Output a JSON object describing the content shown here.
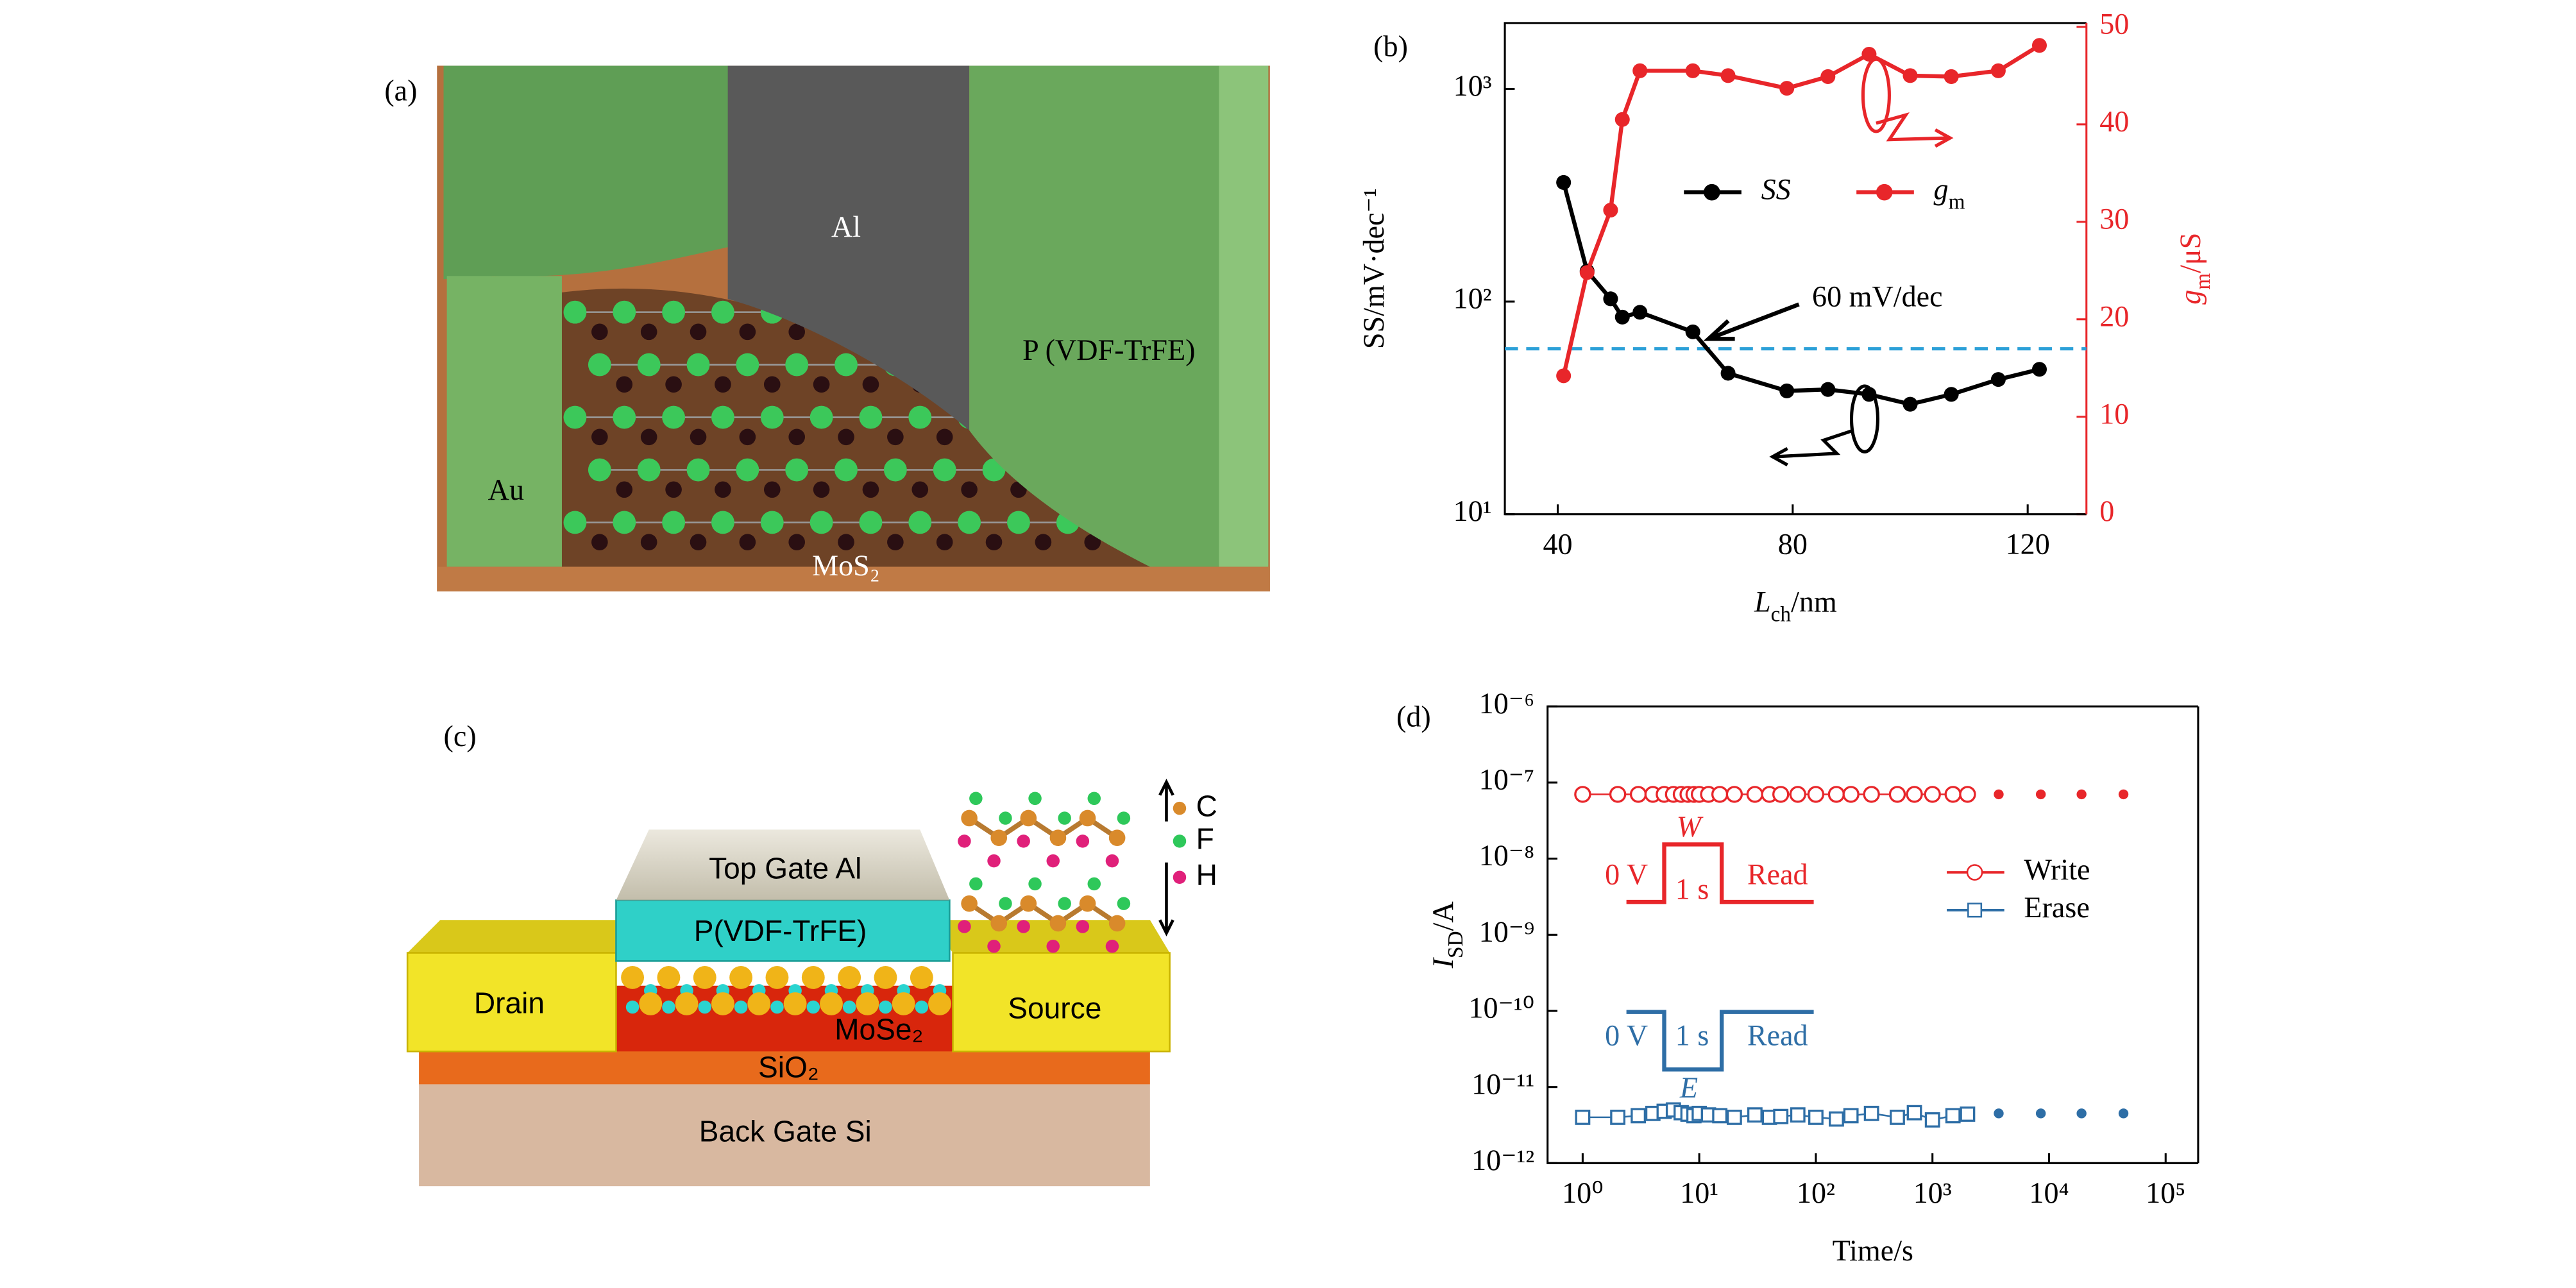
{
  "panels": {
    "a": {
      "label": "(a)",
      "texts": {
        "al": "Al",
        "pvdf": "P (VDF-TrFE)",
        "au": "Au",
        "mos2": "MoS₂"
      }
    },
    "c": {
      "label": "(c)",
      "texts": {
        "top_gate": "Top Gate Al",
        "pvdf": "P(VDF-TrFE)",
        "drain": "Drain",
        "source": "Source",
        "mose2": "MoSe₂",
        "sio2": "SiO₂",
        "back_gate": "Back Gate Si",
        "c": "C",
        "f": "F",
        "h": "H"
      }
    }
  },
  "chart_data": [
    {
      "type": "line",
      "panel_label": "(b)",
      "x": [
        41,
        45,
        49,
        51,
        54,
        63,
        69,
        79,
        86,
        93,
        100,
        107,
        115,
        122
      ],
      "xlim": [
        31,
        130
      ],
      "xticks": [
        40,
        80,
        120
      ],
      "ylog": true,
      "ylim": [
        10,
        2040
      ],
      "yticks": [
        {
          "value": 10,
          "label": "10¹"
        },
        {
          "value": 100,
          "label": "10²"
        },
        {
          "value": 1000,
          "label": "10³"
        }
      ],
      "y2lim": [
        0,
        50.4
      ],
      "y2ticks": [
        0,
        10,
        20,
        30,
        40,
        50
      ],
      "xlabel": [
        "L",
        "ch",
        "/nm"
      ],
      "ylabel": "SS/mV·dec⁻¹",
      "y2label": [
        "g",
        "m",
        "/μS"
      ],
      "legend": "center",
      "series": [
        {
          "name": "SS",
          "color": "#000000",
          "values": [
            363,
            139,
            103,
            84.5,
            89,
            72,
            46,
            38,
            38.6,
            36.6,
            32.9,
            36.6,
            43,
            48
          ]
        },
        {
          "name": "g",
          "name_subscript": "m",
          "color": "#e8262a",
          "axis": "y2",
          "values": [
            14.2,
            24.8,
            31.2,
            40.5,
            45.5,
            45.5,
            45.0,
            43.7,
            44.9,
            47.2,
            45.0,
            44.9,
            45.5,
            48.1
          ]
        }
      ],
      "reference_line": {
        "value": 60,
        "color": "#2ca0d8",
        "label": "60 mV/dec"
      }
    },
    {
      "type": "scatter",
      "panel_label": "(d)",
      "xlog": true,
      "xlim": [
        0.5,
        190000
      ],
      "xticks": [
        {
          "value": 1,
          "label": "10⁰"
        },
        {
          "value": 10,
          "label": "10¹"
        },
        {
          "value": 100,
          "label": "10²"
        },
        {
          "value": 1000,
          "label": "10³"
        },
        {
          "value": 10000,
          "label": "10⁴"
        },
        {
          "value": 100000,
          "label": "10⁵"
        }
      ],
      "ylog": true,
      "ylim": [
        1e-12,
        1e-06
      ],
      "yticks": [
        {
          "value": 1e-12,
          "label": "10⁻¹²"
        },
        {
          "value": 1e-11,
          "label": "10⁻¹¹"
        },
        {
          "value": 1e-10,
          "label": "10⁻¹⁰"
        },
        {
          "value": 1e-09,
          "label": "10⁻⁹"
        },
        {
          "value": 1e-08,
          "label": "10⁻⁸"
        },
        {
          "value": 1e-07,
          "label": "10⁻⁷"
        },
        {
          "value": 1e-06,
          "label": "10⁻⁶"
        }
      ],
      "xlabel": "Time/s",
      "ylabel": [
        "I",
        "SD",
        "/A"
      ],
      "legend": "right",
      "series": [
        {
          "name": "Write",
          "color": "#e8262a",
          "marker": "circle",
          "x": [
            1,
            2,
            3,
            4,
            5,
            6,
            7,
            8,
            9,
            10,
            12,
            15,
            20,
            30,
            40,
            50,
            70,
            100,
            150,
            200,
            300,
            500,
            700,
            1000,
            1500,
            2000
          ],
          "values": [
            7e-08,
            7e-08,
            7e-08,
            7e-08,
            7e-08,
            7e-08,
            7e-08,
            7e-08,
            7e-08,
            7e-08,
            7e-08,
            7e-08,
            7e-08,
            7e-08,
            7e-08,
            7e-08,
            7e-08,
            7e-08,
            7e-08,
            7e-08,
            7e-08,
            7e-08,
            7e-08,
            7e-08,
            7e-08,
            7e-08
          ],
          "dots_x": [
            3700,
            8500,
            19000,
            43500
          ],
          "dots_values": [
            7e-08,
            7e-08,
            7e-08,
            7e-08
          ]
        },
        {
          "name": "Erase",
          "color": "#2e6ea6",
          "marker": "square",
          "x": [
            1,
            2,
            3,
            4,
            5,
            6,
            7,
            8,
            9,
            10,
            12,
            15,
            20,
            30,
            40,
            50,
            70,
            100,
            150,
            200,
            300,
            500,
            700,
            1000,
            1500,
            2000
          ],
          "values": [
            4e-12,
            4e-12,
            4.2e-12,
            4.5e-12,
            4.8e-12,
            5e-12,
            4.6e-12,
            4.4e-12,
            4.2e-12,
            4.5e-12,
            4.3e-12,
            4.2e-12,
            4e-12,
            4.3e-12,
            4e-12,
            4.1e-12,
            4.3e-12,
            4e-12,
            3.8e-12,
            4.2e-12,
            4.5e-12,
            4e-12,
            4.6e-12,
            3.7e-12,
            4.2e-12,
            4.4e-12
          ],
          "dots_x": [
            3700,
            8500,
            19000,
            43500
          ],
          "dots_values": [
            4.5e-12,
            4.5e-12,
            4.5e-12,
            4.5e-12
          ]
        }
      ],
      "insets": [
        {
          "color": "#e8262a",
          "v_label": "0 V",
          "t_label": "1 s",
          "read_label": "Read",
          "pulse_label": "W",
          "direction": "up"
        },
        {
          "color": "#2e6ea6",
          "v_label": "0 V",
          "t_label": "1 s",
          "read_label": "Read",
          "pulse_label": "E",
          "direction": "down"
        }
      ]
    }
  ]
}
